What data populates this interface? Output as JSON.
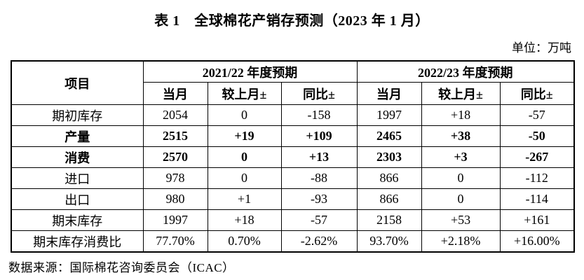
{
  "page": {
    "title": "表 1　全球棉花产销存预测（2023 年 1 月）",
    "unit_label": "单位：万吨",
    "source": "数据来源：国际棉花咨询委员会（ICAC）"
  },
  "table": {
    "item_header": "项目",
    "groups": [
      {
        "label": "2021/22 年度预期",
        "columns": [
          "当月",
          "较上月±",
          "同比±"
        ]
      },
      {
        "label": "2022/23 年度预期",
        "columns": [
          "当月",
          "较上月±",
          "同比±"
        ]
      }
    ],
    "rows": [
      {
        "label": "期初库存",
        "bold": false,
        "values": [
          "2054",
          "0",
          "-158",
          "1997",
          "+18",
          "-57"
        ]
      },
      {
        "label": "产量",
        "bold": true,
        "values": [
          "2515",
          "+19",
          "+109",
          "2465",
          "+38",
          "-50"
        ]
      },
      {
        "label": "消费",
        "bold": true,
        "values": [
          "2570",
          "0",
          "+13",
          "2303",
          "+3",
          "-267"
        ]
      },
      {
        "label": "进口",
        "bold": false,
        "values": [
          "978",
          "0",
          "-88",
          "866",
          "0",
          "-112"
        ]
      },
      {
        "label": "出口",
        "bold": false,
        "values": [
          "980",
          "+1",
          "-93",
          "866",
          "0",
          "-114"
        ]
      },
      {
        "label": "期末库存",
        "bold": false,
        "values": [
          "1997",
          "+18",
          "-57",
          "2158",
          "+53",
          "+161"
        ]
      },
      {
        "label": "期末库存消费比",
        "bold": false,
        "values": [
          "77.70%",
          "0.70%",
          "-2.62%",
          "93.70%",
          "+2.18%",
          "+16.00%"
        ]
      }
    ]
  }
}
